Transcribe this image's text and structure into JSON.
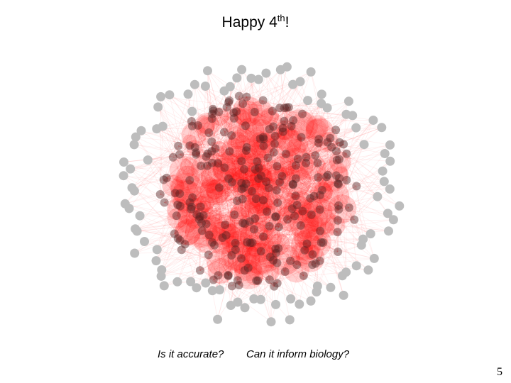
{
  "slide": {
    "title": {
      "text": "Happy 4",
      "superscript": "th",
      "suffix": "!"
    },
    "questions": [
      "Is it accurate?",
      "Can it inform biology?"
    ],
    "page_number": "5"
  }
}
